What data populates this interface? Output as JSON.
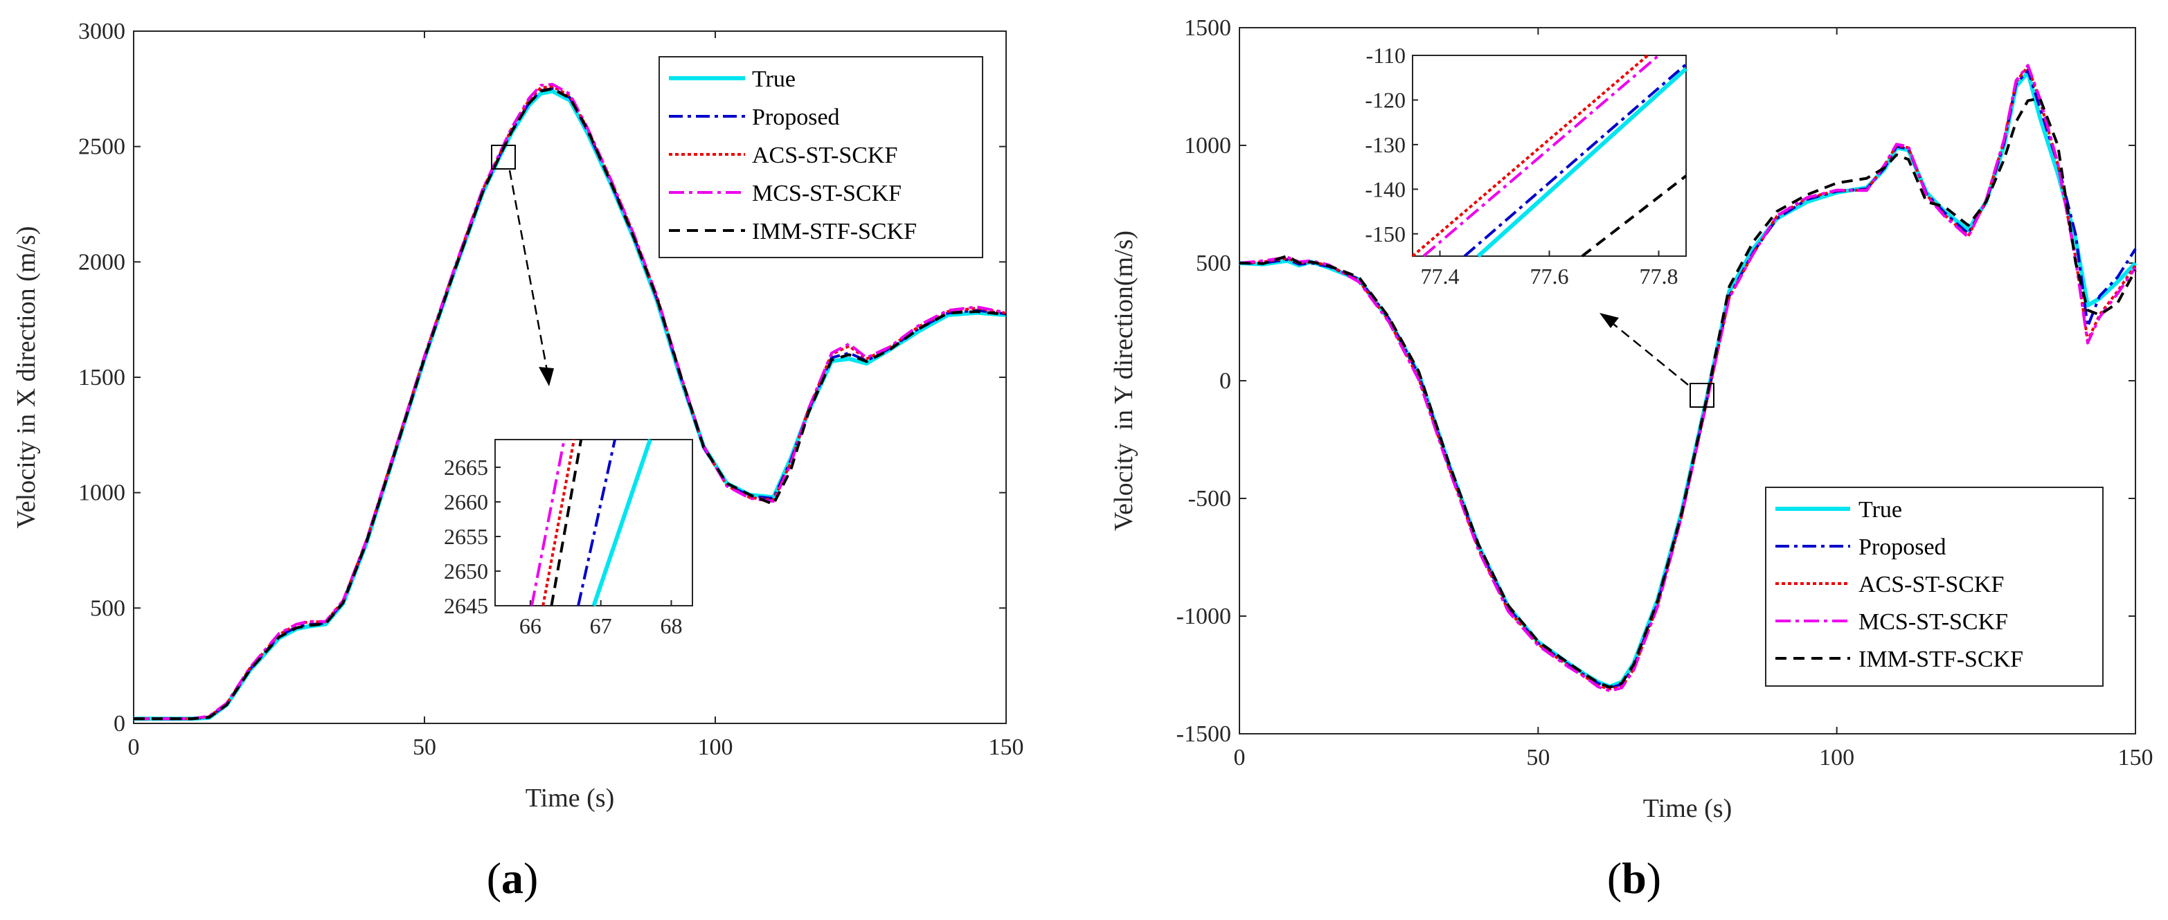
{
  "colors": {
    "true": "#00e5f0",
    "proposed": "#0000cc",
    "acs": "#ee0000",
    "mcs": "#ee00ee",
    "imm": "#000000",
    "axis": "#262626"
  },
  "series_names": [
    "True",
    "Proposed",
    "ACS-ST-SCKF",
    "MCS-ST-SCKF",
    "IMM-STF-SCKF"
  ],
  "chart_data": [
    {
      "type": "line",
      "panel_label": "(a)",
      "panel_letter": "a",
      "xlabel": "Time (s)",
      "ylabel": "Velocity in X direction (m/s)",
      "xlim": [
        0,
        150
      ],
      "ylim": [
        0,
        3000
      ],
      "xticks": [
        0,
        50,
        100,
        150
      ],
      "yticks": [
        0,
        500,
        1000,
        1500,
        2000,
        2500,
        3000
      ],
      "legend_position": "top-right",
      "x": [
        0,
        5,
        10,
        13,
        16,
        20,
        25,
        28,
        30,
        33,
        36,
        40,
        45,
        50,
        55,
        60,
        63,
        65,
        68,
        70,
        72,
        75,
        78,
        82,
        86,
        90,
        94,
        98,
        102,
        106,
        110,
        113,
        116,
        120,
        123,
        126,
        130,
        135,
        140,
        145,
        150
      ],
      "series": [
        {
          "name": "True",
          "values": [
            20,
            20,
            20,
            25,
            80,
            230,
            370,
            410,
            420,
            430,
            520,
            780,
            1180,
            1580,
            1950,
            2300,
            2460,
            2560,
            2680,
            2730,
            2740,
            2700,
            2560,
            2340,
            2100,
            1830,
            1500,
            1200,
            1040,
            990,
            980,
            1150,
            1350,
            1570,
            1580,
            1560,
            1620,
            1700,
            1770,
            1780,
            1770
          ]
        },
        {
          "name": "Proposed",
          "values": [
            20,
            20,
            20,
            28,
            82,
            235,
            378,
            418,
            428,
            434,
            525,
            785,
            1183,
            1585,
            1953,
            2305,
            2465,
            2568,
            2690,
            2742,
            2752,
            2712,
            2570,
            2350,
            2110,
            1838,
            1505,
            1195,
            1035,
            985,
            975,
            1140,
            1355,
            1585,
            1605,
            1572,
            1625,
            1712,
            1778,
            1790,
            1775
          ]
        },
        {
          "name": "ACS-ST-SCKF",
          "values": [
            20,
            20,
            20,
            30,
            85,
            240,
            385,
            428,
            440,
            440,
            530,
            790,
            1188,
            1590,
            1960,
            2312,
            2470,
            2578,
            2702,
            2755,
            2760,
            2720,
            2578,
            2358,
            2118,
            1846,
            1512,
            1200,
            1030,
            978,
            968,
            1130,
            1360,
            1600,
            1635,
            1580,
            1630,
            1720,
            1785,
            1800,
            1778
          ]
        },
        {
          "name": "MCS-ST-SCKF",
          "values": [
            20,
            20,
            20,
            32,
            88,
            242,
            390,
            430,
            442,
            442,
            532,
            792,
            1190,
            1592,
            1962,
            2315,
            2475,
            2582,
            2710,
            2765,
            2770,
            2728,
            2582,
            2360,
            2120,
            1850,
            1515,
            1202,
            1028,
            975,
            962,
            1125,
            1362,
            1605,
            1645,
            1585,
            1632,
            1725,
            1790,
            1805,
            1780
          ]
        },
        {
          "name": "IMM-STF-SCKF",
          "values": [
            20,
            20,
            20,
            26,
            80,
            232,
            374,
            414,
            424,
            432,
            522,
            782,
            1180,
            1582,
            1950,
            2302,
            2462,
            2565,
            2688,
            2740,
            2750,
            2710,
            2575,
            2345,
            2105,
            1840,
            1510,
            1198,
            1040,
            990,
            950,
            1100,
            1345,
            1575,
            1598,
            1568,
            1620,
            1710,
            1778,
            1785,
            1772
          ]
        }
      ],
      "inset": {
        "xlim": [
          65.5,
          68.3
        ],
        "ylim": [
          2645,
          2669
        ],
        "xticks": [
          66,
          67,
          68
        ],
        "yticks": [
          2645,
          2650,
          2655,
          2660,
          2665
        ],
        "lines": [
          {
            "name": "True",
            "x": [
              66.9,
              67.7
            ],
            "y": [
              2645,
              2669
            ]
          },
          {
            "name": "Proposed",
            "x": [
              66.68,
              67.2
            ],
            "y": [
              2645,
              2669
            ]
          },
          {
            "name": "ACS-ST-SCKF",
            "x": [
              66.18,
              66.62
            ],
            "y": [
              2645,
              2669
            ]
          },
          {
            "name": "MCS-ST-SCKF",
            "x": [
              66.02,
              66.48
            ],
            "y": [
              2645,
              2669
            ]
          },
          {
            "name": "IMM-STF-SCKF",
            "x": [
              66.3,
              66.72
            ],
            "y": [
              2645,
              2669
            ]
          }
        ]
      }
    },
    {
      "type": "line",
      "panel_label": "(b)",
      "panel_letter": "b",
      "xlabel": "Time (s)",
      "ylabel": "Velocity  in Y direction(m/s)",
      "xlim": [
        0,
        150
      ],
      "ylim": [
        -1500,
        1500
      ],
      "xticks": [
        0,
        50,
        100,
        150
      ],
      "yticks": [
        -1500,
        -1000,
        -500,
        0,
        500,
        1000,
        1500
      ],
      "legend_position": "bottom-right",
      "x": [
        0,
        4,
        8,
        10,
        12,
        15,
        20,
        25,
        30,
        35,
        40,
        45,
        50,
        55,
        58,
        60,
        62,
        64,
        66,
        70,
        74,
        78,
        82,
        86,
        90,
        95,
        100,
        105,
        108,
        110,
        112,
        115,
        118,
        122,
        125,
        128,
        130,
        132,
        134,
        137,
        140,
        142,
        144,
        147,
        150
      ],
      "series": [
        {
          "name": "True",
          "values": [
            500,
            495,
            510,
            490,
            505,
            480,
            430,
            260,
            30,
            -350,
            -700,
            -960,
            -1110,
            -1200,
            -1250,
            -1280,
            -1300,
            -1280,
            -1200,
            -930,
            -560,
            -100,
            380,
            560,
            690,
            760,
            800,
            820,
            900,
            990,
            980,
            800,
            720,
            640,
            760,
            1000,
            1250,
            1310,
            1120,
            880,
            600,
            320,
            350,
            420,
            500
          ]
        },
        {
          "name": "Proposed",
          "values": [
            500,
            500,
            515,
            495,
            500,
            485,
            432,
            265,
            25,
            -355,
            -705,
            -965,
            -1115,
            -1205,
            -1255,
            -1285,
            -1305,
            -1290,
            -1215,
            -945,
            -572,
            -110,
            360,
            545,
            690,
            770,
            805,
            815,
            905,
            995,
            985,
            795,
            715,
            625,
            760,
            1010,
            1260,
            1320,
            1160,
            920,
            620,
            230,
            360,
            440,
            560
          ]
        },
        {
          "name": "ACS-ST-SCKF",
          "values": [
            500,
            505,
            520,
            500,
            505,
            490,
            425,
            255,
            10,
            -365,
            -715,
            -975,
            -1120,
            -1210,
            -1260,
            -1295,
            -1310,
            -1300,
            -1225,
            -955,
            -578,
            -115,
            355,
            540,
            700,
            775,
            808,
            810,
            915,
            1000,
            990,
            790,
            705,
            615,
            765,
            1020,
            1270,
            1335,
            1190,
            920,
            520,
            170,
            280,
            380,
            490
          ]
        },
        {
          "name": "MCS-ST-SCKF",
          "values": [
            500,
            510,
            525,
            505,
            510,
            492,
            420,
            250,
            5,
            -370,
            -720,
            -980,
            -1125,
            -1215,
            -1262,
            -1300,
            -1318,
            -1305,
            -1230,
            -960,
            -580,
            -118,
            352,
            538,
            702,
            778,
            810,
            808,
            918,
            1005,
            995,
            788,
            700,
            610,
            768,
            1025,
            1275,
            1340,
            1200,
            925,
            510,
            160,
            270,
            370,
            480
          ]
        },
        {
          "name": "IMM-STF-SCKF",
          "values": [
            500,
            498,
            530,
            500,
            505,
            488,
            440,
            270,
            40,
            -345,
            -695,
            -955,
            -1108,
            -1198,
            -1250,
            -1282,
            -1302,
            -1285,
            -1205,
            -935,
            -565,
            -100,
            400,
            590,
            720,
            790,
            840,
            860,
            905,
            960,
            940,
            760,
            740,
            660,
            760,
            940,
            1100,
            1190,
            1200,
            1000,
            500,
            300,
            280,
            330,
            470
          ]
        }
      ],
      "inset": {
        "xlim": [
          77.35,
          77.85
        ],
        "ylim": [
          -155,
          -110
        ],
        "xticks": [
          77.4,
          77.6,
          77.8
        ],
        "yticks": [
          -110,
          -120,
          -130,
          -140,
          -150
        ],
        "lines": [
          {
            "name": "True",
            "x": [
              77.47,
              77.85
            ],
            "y": [
              -155,
              -113
            ]
          },
          {
            "name": "Proposed",
            "x": [
              77.445,
              77.85
            ],
            "y": [
              -155,
              -112
            ]
          },
          {
            "name": "ACS-ST-SCKF",
            "x": [
              77.35,
              77.78
            ],
            "y": [
              -155,
              -110
            ]
          },
          {
            "name": "MCS-ST-SCKF",
            "x": [
              77.37,
              77.8
            ],
            "y": [
              -155,
              -110
            ]
          },
          {
            "name": "IMM-STF-SCKF",
            "x": [
              77.66,
              77.85
            ],
            "y": [
              -155,
              -137
            ]
          }
        ]
      }
    }
  ]
}
